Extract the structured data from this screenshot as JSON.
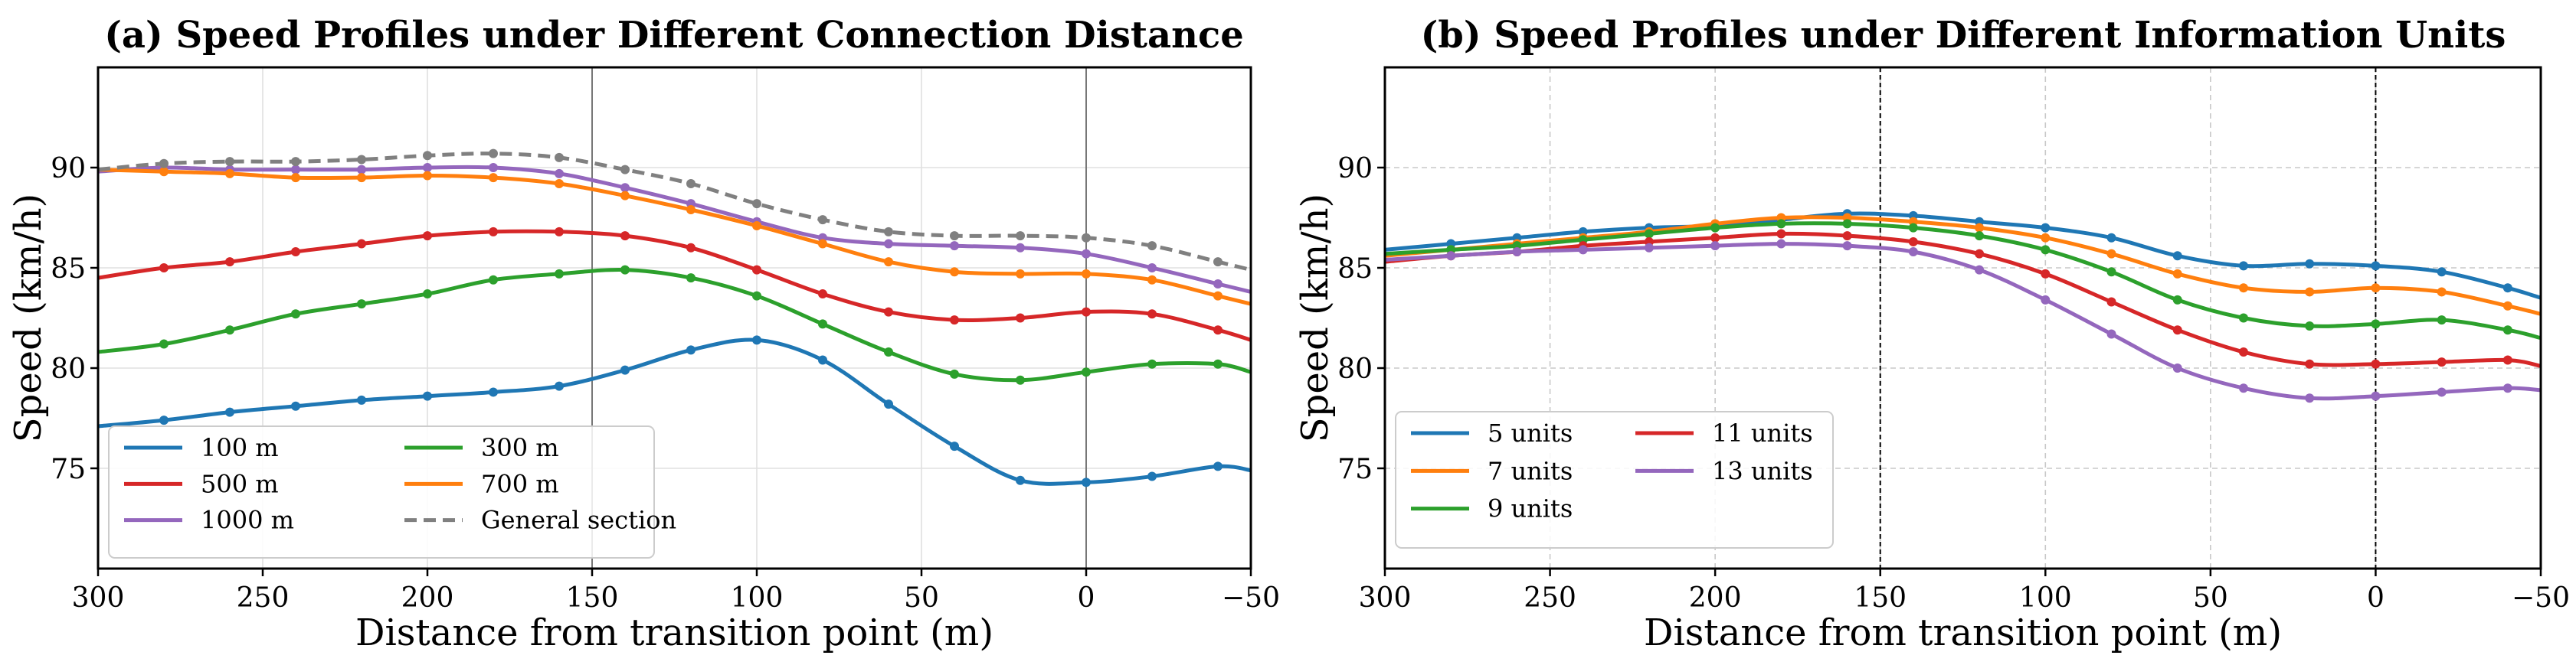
{
  "chart_data": [
    {
      "type": "line",
      "title": "(a) Speed Profiles under Different Connection Distance",
      "xlabel": "Distance from transition point (m)",
      "ylabel": "Speed (km/h)",
      "xlim": [
        300,
        -50
      ],
      "ylim": [
        70,
        95
      ],
      "xticks": [
        300,
        250,
        200,
        150,
        100,
        50,
        0,
        -50
      ],
      "xtick_labels": [
        "300",
        "250",
        "200",
        "150",
        "100",
        "50",
        "0",
        "−50"
      ],
      "yticks": [
        75,
        80,
        85,
        90
      ],
      "ytick_labels": [
        "75",
        "80",
        "85",
        "90"
      ],
      "grid": "solid",
      "vlines": [
        150,
        0
      ],
      "legend": {
        "placement": "lower-left",
        "columns": 2
      },
      "series": [
        {
          "name": "100 m",
          "color": "#1f77b4",
          "dash": "solid",
          "x": [
            300,
            280,
            260,
            240,
            220,
            200,
            180,
            160,
            140,
            120,
            100,
            80,
            60,
            40,
            20,
            0,
            -20,
            -40,
            -50
          ],
          "y": [
            77.1,
            77.4,
            77.8,
            78.1,
            78.4,
            78.6,
            78.8,
            79.1,
            79.9,
            80.9,
            81.4,
            80.4,
            78.2,
            76.1,
            74.4,
            74.3,
            74.6,
            75.1,
            74.9
          ]
        },
        {
          "name": "500 m",
          "color": "#d62728",
          "dash": "solid",
          "x": [
            300,
            280,
            260,
            240,
            220,
            200,
            180,
            160,
            140,
            120,
            100,
            80,
            60,
            40,
            20,
            0,
            -20,
            -40,
            -50
          ],
          "y": [
            84.5,
            85.0,
            85.3,
            85.8,
            86.2,
            86.6,
            86.8,
            86.8,
            86.6,
            86.0,
            84.9,
            83.7,
            82.8,
            82.4,
            82.5,
            82.8,
            82.7,
            81.9,
            81.4
          ]
        },
        {
          "name": "1000 m",
          "color": "#9467bd",
          "dash": "solid",
          "x": [
            300,
            280,
            260,
            240,
            220,
            200,
            180,
            160,
            140,
            120,
            100,
            80,
            60,
            40,
            20,
            0,
            -20,
            -40,
            -50
          ],
          "y": [
            89.8,
            90.0,
            89.9,
            89.9,
            89.9,
            90.0,
            90.0,
            89.7,
            89.0,
            88.2,
            87.3,
            86.5,
            86.2,
            86.1,
            86.0,
            85.7,
            85.0,
            84.2,
            83.8
          ]
        },
        {
          "name": "300 m",
          "color": "#2ca02c",
          "dash": "solid",
          "x": [
            300,
            280,
            260,
            240,
            220,
            200,
            180,
            160,
            140,
            120,
            100,
            80,
            60,
            40,
            20,
            0,
            -20,
            -40,
            -50
          ],
          "y": [
            80.8,
            81.2,
            81.9,
            82.7,
            83.2,
            83.7,
            84.4,
            84.7,
            84.9,
            84.5,
            83.6,
            82.2,
            80.8,
            79.7,
            79.4,
            79.8,
            80.2,
            80.2,
            79.8
          ]
        },
        {
          "name": "700 m",
          "color": "#ff7f0e",
          "dash": "solid",
          "x": [
            300,
            280,
            260,
            240,
            220,
            200,
            180,
            160,
            140,
            120,
            100,
            80,
            60,
            40,
            20,
            0,
            -20,
            -40,
            -50
          ],
          "y": [
            89.9,
            89.8,
            89.7,
            89.5,
            89.5,
            89.6,
            89.5,
            89.2,
            88.6,
            87.9,
            87.1,
            86.2,
            85.3,
            84.8,
            84.7,
            84.7,
            84.4,
            83.6,
            83.2
          ]
        },
        {
          "name": "General section",
          "color": "#808080",
          "dash": "dashed",
          "x": [
            300,
            280,
            260,
            240,
            220,
            200,
            180,
            160,
            140,
            120,
            100,
            80,
            60,
            40,
            20,
            0,
            -20,
            -40,
            -50
          ],
          "y": [
            89.9,
            90.2,
            90.3,
            90.3,
            90.4,
            90.6,
            90.7,
            90.5,
            89.9,
            89.2,
            88.2,
            87.4,
            86.8,
            86.6,
            86.6,
            86.5,
            86.1,
            85.3,
            84.9
          ]
        }
      ]
    },
    {
      "type": "line",
      "title": "(b) Speed Profiles under Different Information Units",
      "xlabel": "Distance from transition point (m)",
      "ylabel": "Speed (km/h)",
      "xlim": [
        300,
        -50
      ],
      "ylim": [
        70,
        95
      ],
      "xticks": [
        300,
        250,
        200,
        150,
        100,
        50,
        0,
        -50
      ],
      "xtick_labels": [
        "300",
        "250",
        "200",
        "150",
        "100",
        "50",
        "0",
        "−50"
      ],
      "yticks": [
        75,
        80,
        85,
        90
      ],
      "ytick_labels": [
        "75",
        "80",
        "85",
        "90"
      ],
      "grid": "dashed",
      "vlines": [
        150,
        0
      ],
      "legend": {
        "placement": "lower-left",
        "columns": 2
      },
      "series": [
        {
          "name": "5 units",
          "color": "#1f77b4",
          "dash": "solid",
          "x": [
            300,
            280,
            260,
            240,
            220,
            200,
            180,
            160,
            140,
            120,
            100,
            80,
            60,
            40,
            20,
            0,
            -20,
            -40,
            -50
          ],
          "y": [
            85.9,
            86.2,
            86.5,
            86.8,
            87.0,
            87.1,
            87.4,
            87.7,
            87.6,
            87.3,
            87.0,
            86.5,
            85.6,
            85.1,
            85.2,
            85.1,
            84.8,
            84.0,
            83.5
          ]
        },
        {
          "name": "7 units",
          "color": "#ff7f0e",
          "dash": "solid",
          "x": [
            300,
            280,
            260,
            240,
            220,
            200,
            180,
            160,
            140,
            120,
            100,
            80,
            60,
            40,
            20,
            0,
            -20,
            -40,
            -50
          ],
          "y": [
            85.6,
            85.9,
            86.2,
            86.5,
            86.8,
            87.2,
            87.5,
            87.5,
            87.3,
            87.0,
            86.5,
            85.7,
            84.7,
            84.0,
            83.8,
            84.0,
            83.8,
            83.1,
            82.7
          ]
        },
        {
          "name": "9 units",
          "color": "#2ca02c",
          "dash": "solid",
          "x": [
            300,
            280,
            260,
            240,
            220,
            200,
            180,
            160,
            140,
            120,
            100,
            80,
            60,
            40,
            20,
            0,
            -20,
            -40,
            -50
          ],
          "y": [
            85.7,
            85.9,
            86.1,
            86.4,
            86.7,
            87.0,
            87.2,
            87.2,
            87.0,
            86.6,
            85.9,
            84.8,
            83.4,
            82.5,
            82.1,
            82.2,
            82.4,
            81.9,
            81.5
          ]
        },
        {
          "name": "11 units",
          "color": "#d62728",
          "dash": "solid",
          "x": [
            300,
            280,
            260,
            240,
            220,
            200,
            180,
            160,
            140,
            120,
            100,
            80,
            60,
            40,
            20,
            0,
            -20,
            -40,
            -50
          ],
          "y": [
            85.3,
            85.6,
            85.8,
            86.1,
            86.3,
            86.5,
            86.7,
            86.6,
            86.3,
            85.7,
            84.7,
            83.3,
            81.9,
            80.8,
            80.2,
            80.2,
            80.3,
            80.4,
            80.1
          ]
        },
        {
          "name": "13 units",
          "color": "#9467bd",
          "dash": "solid",
          "x": [
            300,
            280,
            260,
            240,
            220,
            200,
            180,
            160,
            140,
            120,
            100,
            80,
            60,
            40,
            20,
            0,
            -20,
            -40,
            -50
          ],
          "y": [
            85.4,
            85.6,
            85.8,
            85.9,
            86.0,
            86.1,
            86.2,
            86.1,
            85.8,
            84.9,
            83.4,
            81.7,
            80.0,
            79.0,
            78.5,
            78.6,
            78.8,
            79.0,
            78.9
          ]
        }
      ]
    }
  ]
}
